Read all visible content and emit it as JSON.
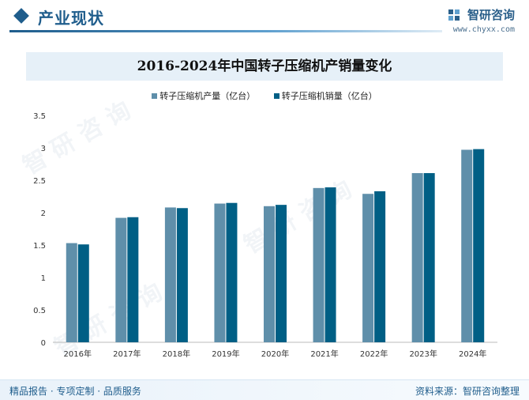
{
  "header": {
    "title": "产业现状"
  },
  "brand": {
    "name": "智研咨询",
    "url": "www.chyxx.com"
  },
  "footer": {
    "left": "精品报告 · 专项定制 · 品质服务",
    "right": "资料来源：智研咨询整理"
  },
  "colors": {
    "production": "#5f8faa",
    "sales": "#005f85",
    "accent": "#1f5d8c",
    "title_band": "#e6f0f8"
  },
  "chart_data": {
    "type": "bar",
    "title": "2016-2024年中国转子压缩机产销量变化",
    "categories": [
      "2016年",
      "2017年",
      "2018年",
      "2019年",
      "2020年",
      "2021年",
      "2022年",
      "2023年",
      "2024年"
    ],
    "series": [
      {
        "name": "转子压缩机产量（亿台）",
        "values": [
          1.53,
          1.92,
          2.08,
          2.14,
          2.1,
          2.38,
          2.29,
          2.61,
          2.97
        ]
      },
      {
        "name": "转子压缩机销量（亿台）",
        "values": [
          1.51,
          1.93,
          2.07,
          2.15,
          2.12,
          2.39,
          2.33,
          2.61,
          2.98
        ]
      }
    ],
    "yticks": [
      "0",
      "0.5",
      "1",
      "1.5",
      "2",
      "2.5",
      "3",
      "3.5"
    ],
    "ylim": [
      0,
      3.5
    ],
    "legend_position": "top-center",
    "grid": false
  }
}
